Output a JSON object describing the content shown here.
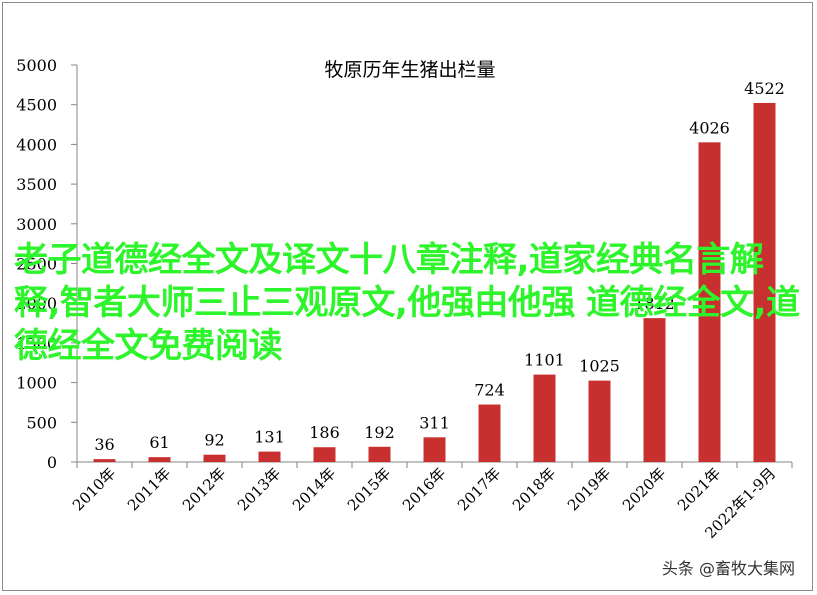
{
  "chart_data": {
    "type": "bar",
    "title": "牧原历年生猪出栏量",
    "categories": [
      "2010年",
      "2011年",
      "2012年",
      "2013年",
      "2014年",
      "2015年",
      "2016年",
      "2017年",
      "2018年",
      "2019年",
      "2020年",
      "2021年",
      "2022年1-9月"
    ],
    "values": [
      36,
      61,
      92,
      131,
      186,
      192,
      311,
      724,
      1101,
      1025,
      1812,
      4026,
      4522
    ],
    "ylim": [
      0,
      5000
    ],
    "yticks": [
      0,
      500,
      1000,
      1500,
      2000,
      2500,
      3000,
      3500,
      4000,
      4500,
      5000
    ],
    "bar_color": "#c8302f",
    "grid": false,
    "legend": "none"
  },
  "overlay": {
    "text": "老子道德经全文及译文十八章注释,道家经典名言解释,智者大师三止三观原文,他强由他强 道德经全文,道德经全文免费阅读",
    "color": "#2ef52b"
  },
  "watermark": {
    "text": "头条 @畜牧大集网"
  }
}
